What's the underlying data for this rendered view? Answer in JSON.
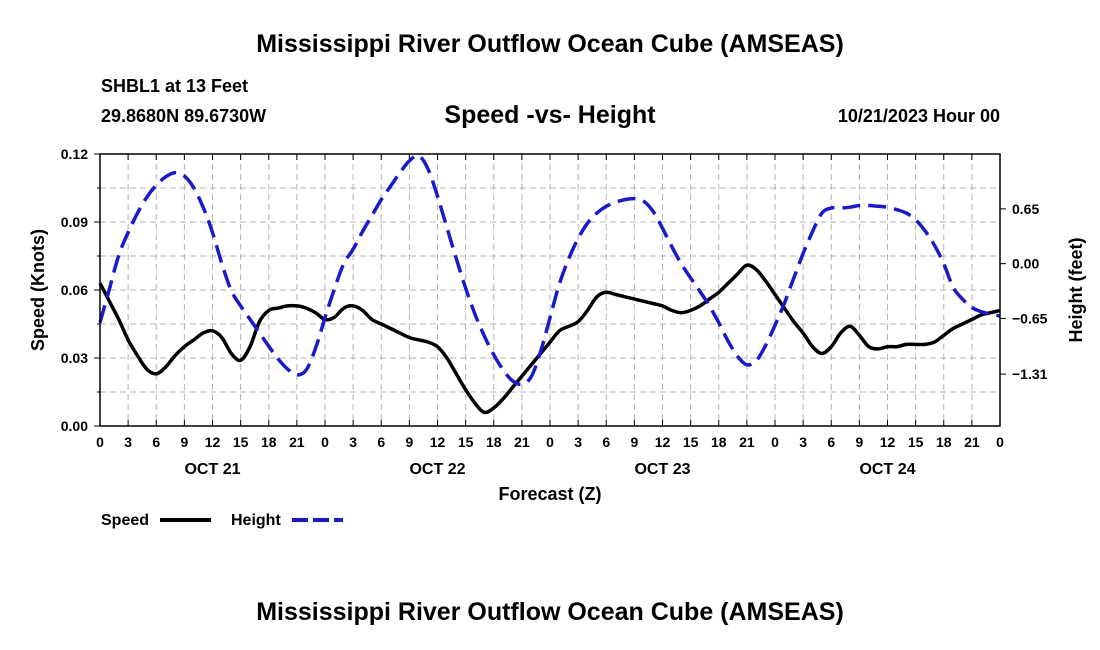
{
  "header": {
    "title": "Mississippi River Outflow Ocean Cube (AMSEAS)",
    "station": "SHBL1 at 13 Feet",
    "coordinates": "29.8680N  89.6730W",
    "subtitle": "Speed -vs- Height",
    "date": "10/21/2023 Hour 00"
  },
  "footer": {
    "title": "Mississippi River Outflow Ocean Cube (AMSEAS)"
  },
  "colors": {
    "speed": "#000000",
    "height": "#1a1ac8",
    "grid": "#b4b4b4"
  },
  "chart_data": {
    "type": "line",
    "xlabel": "Forecast (Z)",
    "x_range_hours": [
      0,
      96
    ],
    "x_tick_labels": [
      "0",
      "3",
      "6",
      "9",
      "12",
      "15",
      "18",
      "21",
      "0",
      "3",
      "6",
      "9",
      "12",
      "15",
      "18",
      "21",
      "0",
      "3",
      "6",
      "9",
      "12",
      "15",
      "18",
      "21",
      "0",
      "3",
      "6",
      "9",
      "12",
      "15",
      "18",
      "21",
      "0"
    ],
    "day_labels": [
      {
        "label": "OCT 21",
        "hour": 12
      },
      {
        "label": "OCT 22",
        "hour": 36
      },
      {
        "label": "OCT 23",
        "hour": 60
      },
      {
        "label": "OCT 24",
        "hour": 84
      }
    ],
    "y_left": {
      "label": "Speed (Knots)",
      "range": [
        0,
        0.12
      ],
      "ticks": [
        0,
        0.03,
        0.06,
        0.09,
        0.12
      ],
      "tick_labels": [
        "0.00",
        "0.03",
        "0.06",
        "0.09",
        "0.12"
      ]
    },
    "y_right": {
      "label": "Height (feet)",
      "range": [
        -1.9256,
        1.3008
      ],
      "ticks": [
        -1.31,
        -0.65,
        0.0,
        0.65
      ],
      "tick_labels": [
        "−1.31",
        "−0.65",
        "0.00",
        "0.65"
      ]
    },
    "series": [
      {
        "name": "Speed",
        "axis": "left",
        "style": "solid",
        "points": [
          [
            0,
            0.063
          ],
          [
            1,
            0.055
          ],
          [
            2,
            0.047
          ],
          [
            3,
            0.038
          ],
          [
            4,
            0.031
          ],
          [
            5,
            0.025
          ],
          [
            6,
            0.023
          ],
          [
            7,
            0.026
          ],
          [
            8,
            0.031
          ],
          [
            9,
            0.035
          ],
          [
            10,
            0.038
          ],
          [
            11,
            0.041
          ],
          [
            12,
            0.042
          ],
          [
            13,
            0.039
          ],
          [
            14,
            0.032
          ],
          [
            15,
            0.029
          ],
          [
            16,
            0.035
          ],
          [
            17,
            0.046
          ],
          [
            18,
            0.051
          ],
          [
            19,
            0.052
          ],
          [
            20,
            0.053
          ],
          [
            21,
            0.053
          ],
          [
            22,
            0.052
          ],
          [
            23,
            0.05
          ],
          [
            24,
            0.047
          ],
          [
            25,
            0.048
          ],
          [
            26,
            0.052
          ],
          [
            27,
            0.053
          ],
          [
            28,
            0.051
          ],
          [
            29,
            0.047
          ],
          [
            30,
            0.045
          ],
          [
            31,
            0.043
          ],
          [
            32,
            0.041
          ],
          [
            33,
            0.039
          ],
          [
            34,
            0.038
          ],
          [
            35,
            0.037
          ],
          [
            36,
            0.035
          ],
          [
            37,
            0.03
          ],
          [
            38,
            0.023
          ],
          [
            39,
            0.016
          ],
          [
            40,
            0.01
          ],
          [
            41,
            0.006
          ],
          [
            42,
            0.008
          ],
          [
            43,
            0.012
          ],
          [
            44,
            0.017
          ],
          [
            45,
            0.022
          ],
          [
            46,
            0.027
          ],
          [
            47,
            0.032
          ],
          [
            48,
            0.037
          ],
          [
            49,
            0.042
          ],
          [
            50,
            0.044
          ],
          [
            51,
            0.046
          ],
          [
            52,
            0.051
          ],
          [
            53,
            0.057
          ],
          [
            54,
            0.059
          ],
          [
            55,
            0.058
          ],
          [
            56,
            0.057
          ],
          [
            57,
            0.056
          ],
          [
            58,
            0.055
          ],
          [
            59,
            0.054
          ],
          [
            60,
            0.053
          ],
          [
            61,
            0.051
          ],
          [
            62,
            0.05
          ],
          [
            63,
            0.051
          ],
          [
            64,
            0.053
          ],
          [
            65,
            0.056
          ],
          [
            66,
            0.059
          ],
          [
            67,
            0.063
          ],
          [
            68,
            0.067
          ],
          [
            69,
            0.071
          ],
          [
            70,
            0.069
          ],
          [
            71,
            0.064
          ],
          [
            72,
            0.058
          ],
          [
            73,
            0.052
          ],
          [
            74,
            0.046
          ],
          [
            75,
            0.041
          ],
          [
            76,
            0.035
          ],
          [
            77,
            0.032
          ],
          [
            78,
            0.035
          ],
          [
            79,
            0.041
          ],
          [
            80,
            0.044
          ],
          [
            81,
            0.04
          ],
          [
            82,
            0.035
          ],
          [
            83,
            0.034
          ],
          [
            84,
            0.035
          ],
          [
            85,
            0.035
          ],
          [
            86,
            0.036
          ],
          [
            87,
            0.036
          ],
          [
            88,
            0.036
          ],
          [
            89,
            0.037
          ],
          [
            90,
            0.04
          ],
          [
            91,
            0.043
          ],
          [
            92,
            0.045
          ],
          [
            93,
            0.047
          ],
          [
            94,
            0.049
          ],
          [
            95,
            0.05
          ],
          [
            96,
            0.051
          ]
        ]
      },
      {
        "name": "Height",
        "axis": "right",
        "style": "dashed",
        "points": [
          [
            0,
            -0.7
          ],
          [
            1,
            -0.3
          ],
          [
            2,
            0.1
          ],
          [
            3,
            0.37
          ],
          [
            4,
            0.6
          ],
          [
            5,
            0.79
          ],
          [
            6,
            0.93
          ],
          [
            7,
            1.03
          ],
          [
            8,
            1.08
          ],
          [
            9,
            1.04
          ],
          [
            10,
            0.9
          ],
          [
            11,
            0.67
          ],
          [
            12,
            0.37
          ],
          [
            13,
            0.0
          ],
          [
            14,
            -0.32
          ],
          [
            15,
            -0.5
          ],
          [
            16,
            -0.66
          ],
          [
            17,
            -0.82
          ],
          [
            18,
            -0.98
          ],
          [
            19,
            -1.13
          ],
          [
            20,
            -1.25
          ],
          [
            21,
            -1.32
          ],
          [
            22,
            -1.26
          ],
          [
            23,
            -1.0
          ],
          [
            24,
            -0.64
          ],
          [
            25,
            -0.3
          ],
          [
            26,
            0.0
          ],
          [
            27,
            0.17
          ],
          [
            28,
            0.38
          ],
          [
            29,
            0.57
          ],
          [
            30,
            0.76
          ],
          [
            31,
            0.92
          ],
          [
            32,
            1.08
          ],
          [
            33,
            1.22
          ],
          [
            34,
            1.28
          ],
          [
            35,
            1.12
          ],
          [
            36,
            0.8
          ],
          [
            37,
            0.43
          ],
          [
            38,
            0.06
          ],
          [
            39,
            -0.29
          ],
          [
            40,
            -0.6
          ],
          [
            41,
            -0.86
          ],
          [
            42,
            -1.08
          ],
          [
            43,
            -1.26
          ],
          [
            44,
            -1.39
          ],
          [
            45,
            -1.43
          ],
          [
            46,
            -1.34
          ],
          [
            47,
            -1.04
          ],
          [
            48,
            -0.64
          ],
          [
            49,
            -0.24
          ],
          [
            50,
            0.06
          ],
          [
            51,
            0.3
          ],
          [
            52,
            0.48
          ],
          [
            53,
            0.6
          ],
          [
            54,
            0.68
          ],
          [
            55,
            0.73
          ],
          [
            56,
            0.76
          ],
          [
            57,
            0.77
          ],
          [
            58,
            0.74
          ],
          [
            59,
            0.62
          ],
          [
            60,
            0.42
          ],
          [
            61,
            0.2
          ],
          [
            62,
            0.0
          ],
          [
            63,
            -0.17
          ],
          [
            64,
            -0.33
          ],
          [
            65,
            -0.5
          ],
          [
            66,
            -0.7
          ],
          [
            67,
            -0.92
          ],
          [
            68,
            -1.1
          ],
          [
            69,
            -1.2
          ],
          [
            70,
            -1.15
          ],
          [
            71,
            -0.97
          ],
          [
            72,
            -0.73
          ],
          [
            73,
            -0.47
          ],
          [
            74,
            -0.17
          ],
          [
            75,
            0.12
          ],
          [
            76,
            0.38
          ],
          [
            77,
            0.6
          ],
          [
            78,
            0.66
          ],
          [
            79,
            0.66
          ],
          [
            80,
            0.67
          ],
          [
            81,
            0.69
          ],
          [
            82,
            0.69
          ],
          [
            83,
            0.68
          ],
          [
            84,
            0.67
          ],
          [
            85,
            0.64
          ],
          [
            86,
            0.6
          ],
          [
            87,
            0.52
          ],
          [
            88,
            0.39
          ],
          [
            89,
            0.22
          ],
          [
            90,
            0.0
          ],
          [
            91,
            -0.28
          ],
          [
            92,
            -0.42
          ],
          [
            93,
            -0.52
          ],
          [
            94,
            -0.57
          ],
          [
            95,
            -0.6
          ],
          [
            96,
            -0.62
          ]
        ]
      }
    ],
    "legend": [
      {
        "label": "Speed",
        "style": "solid"
      },
      {
        "label": "Height",
        "style": "dashed"
      }
    ],
    "legend_placement": "bottom-left",
    "grid": true
  }
}
